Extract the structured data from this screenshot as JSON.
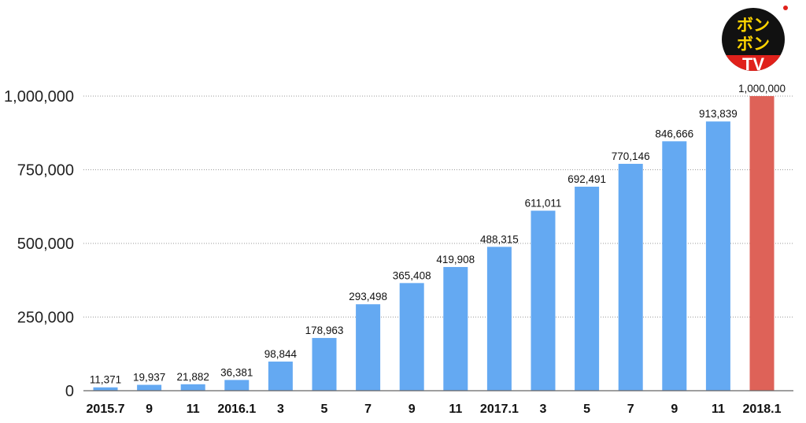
{
  "logo": {
    "line1": "ボン",
    "line2": "ボン",
    "tv": "TV"
  },
  "chart_data": {
    "type": "bar",
    "categories": [
      "2015.7",
      "9",
      "11",
      "2016.1",
      "3",
      "5",
      "7",
      "9",
      "11",
      "2017.1",
      "3",
      "5",
      "7",
      "9",
      "11",
      "2018.1"
    ],
    "values": [
      11371,
      19937,
      21882,
      36381,
      98844,
      178963,
      293498,
      365408,
      419908,
      488315,
      611011,
      692491,
      770146,
      846666,
      913839,
      1000000
    ],
    "value_labels": [
      "11,371",
      "19,937",
      "21,882",
      "36,381",
      "98,844",
      "178,963",
      "293,498",
      "365,408",
      "419,908",
      "488,315",
      "611,011",
      "692,491",
      "770,146",
      "846,666",
      "913,839",
      "1,000,000"
    ],
    "yticks": [
      0,
      250000,
      500000,
      750000,
      1000000
    ],
    "ytick_labels": [
      "0",
      "250,000",
      "500,000",
      "750,000",
      "1,000,000"
    ],
    "ylim": [
      0,
      1000000
    ],
    "grid": true,
    "colors": {
      "bar": "#64a9f2",
      "highlight": "#de6258",
      "highlight_index": 15
    }
  }
}
